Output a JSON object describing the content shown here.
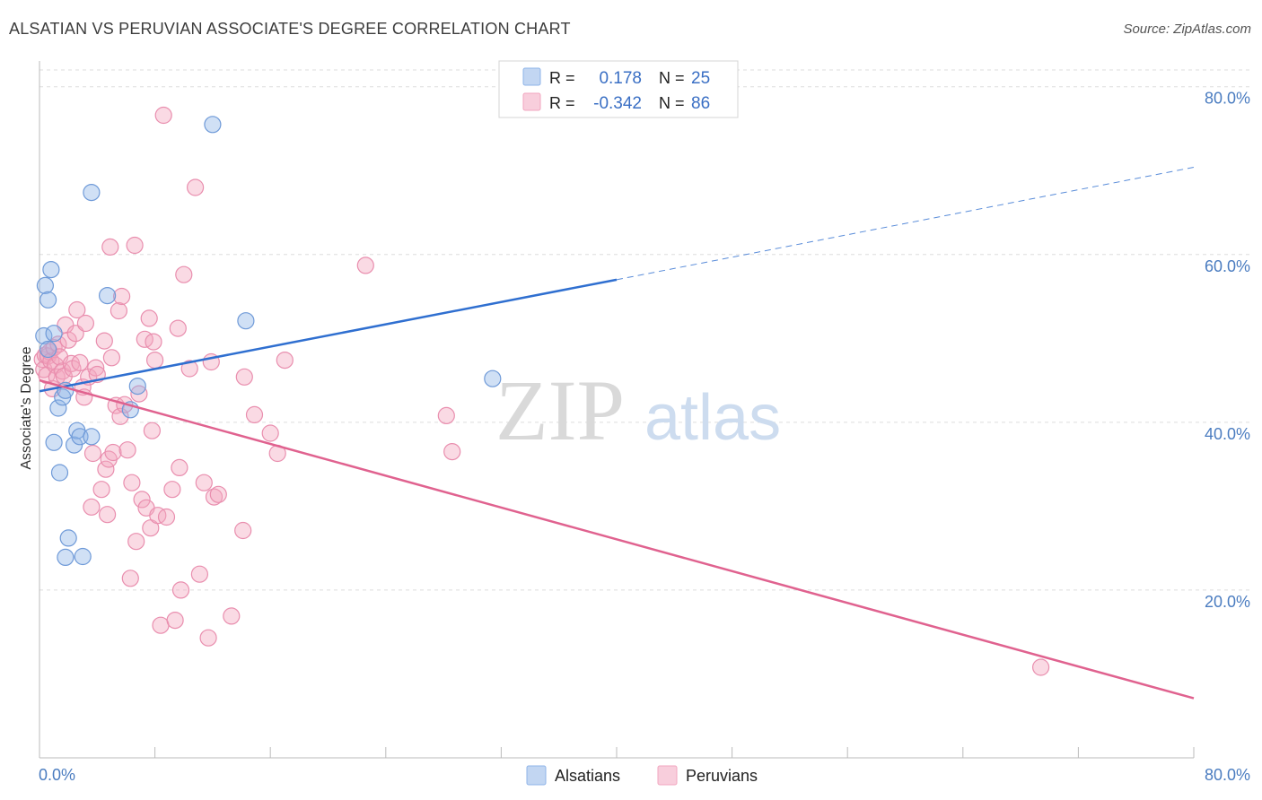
{
  "title": "ALSATIAN VS PERUVIAN ASSOCIATE'S DEGREE CORRELATION CHART",
  "source": "Source: ZipAtlas.com",
  "watermark": {
    "zip": "ZIP",
    "atlas": "atlas"
  },
  "colors": {
    "alsatians": "#8fb4e8",
    "alsatians_line": "#2f6fd0",
    "peruvians": "#f2a6bf",
    "peruvians_line": "#e0628f",
    "tick": "#4a7cc0",
    "grid": "#dddddd"
  },
  "legend_top": [
    {
      "r_label": "R =",
      "r_value": "0.178",
      "n_label": "N =",
      "n_value": "25"
    },
    {
      "r_label": "R =",
      "r_value": "-0.342",
      "n_label": "N =",
      "n_value": "86"
    }
  ],
  "chart_data": {
    "type": "scatter",
    "title": "ALSATIAN VS PERUVIAN ASSOCIATE'S DEGREE CORRELATION CHART",
    "xlabel": "",
    "ylabel": "Associate's Degree",
    "xlim": [
      0,
      80
    ],
    "ylim": [
      0,
      82
    ],
    "x_tick_labels": [
      "0.0%",
      "80.0%"
    ],
    "y_ticks": [
      20,
      40,
      60,
      80
    ],
    "y_tick_labels": [
      "20.0%",
      "40.0%",
      "60.0%",
      "80.0%"
    ],
    "grid": true,
    "legend_position": "bottom-center",
    "series": [
      {
        "name": "Alsatians",
        "r": 0.178,
        "n": 25,
        "points": [
          [
            0.3,
            50.3
          ],
          [
            0.6,
            48.7
          ],
          [
            0.4,
            56.3
          ],
          [
            0.6,
            54.6
          ],
          [
            0.8,
            58.2
          ],
          [
            1.0,
            50.6
          ],
          [
            1.0,
            37.6
          ],
          [
            1.3,
            41.7
          ],
          [
            1.4,
            34.0
          ],
          [
            1.6,
            43.0
          ],
          [
            1.8,
            43.8
          ],
          [
            1.8,
            23.9
          ],
          [
            2.0,
            26.2
          ],
          [
            2.4,
            37.3
          ],
          [
            2.6,
            39.0
          ],
          [
            2.8,
            38.3
          ],
          [
            3.0,
            24.0
          ],
          [
            3.6,
            38.3
          ],
          [
            3.6,
            67.4
          ],
          [
            4.7,
            55.1
          ],
          [
            6.3,
            41.5
          ],
          [
            6.8,
            44.3
          ],
          [
            12.0,
            75.5
          ],
          [
            14.3,
            52.1
          ],
          [
            31.4,
            45.2
          ]
        ],
        "trend": {
          "x": [
            0,
            40
          ],
          "y": [
            43.7,
            57.0
          ]
        },
        "trend_extension": {
          "x": [
            40,
            80
          ],
          "y": [
            57.0,
            70.4
          ]
        }
      },
      {
        "name": "Peruvians",
        "r": -0.342,
        "n": 86,
        "points": [
          [
            0.2,
            47.5
          ],
          [
            0.3,
            46.3
          ],
          [
            0.4,
            48.0
          ],
          [
            0.5,
            45.6
          ],
          [
            0.6,
            47.9
          ],
          [
            0.7,
            48.4
          ],
          [
            0.8,
            47.3
          ],
          [
            0.9,
            44.0
          ],
          [
            1.0,
            48.9
          ],
          [
            1.1,
            46.8
          ],
          [
            1.2,
            45.4
          ],
          [
            1.3,
            49.3
          ],
          [
            1.4,
            47.8
          ],
          [
            1.6,
            46.1
          ],
          [
            1.7,
            45.5
          ],
          [
            1.8,
            51.6
          ],
          [
            2.0,
            49.8
          ],
          [
            2.2,
            47.0
          ],
          [
            2.3,
            46.4
          ],
          [
            2.5,
            50.6
          ],
          [
            2.6,
            53.4
          ],
          [
            2.8,
            47.1
          ],
          [
            3.0,
            44.2
          ],
          [
            3.1,
            43.0
          ],
          [
            3.2,
            51.8
          ],
          [
            3.4,
            45.4
          ],
          [
            3.6,
            29.9
          ],
          [
            3.7,
            36.3
          ],
          [
            3.9,
            46.5
          ],
          [
            4.0,
            45.7
          ],
          [
            4.3,
            32.0
          ],
          [
            4.5,
            49.7
          ],
          [
            4.6,
            34.4
          ],
          [
            4.7,
            29.0
          ],
          [
            4.8,
            35.6
          ],
          [
            4.9,
            60.9
          ],
          [
            5.0,
            47.7
          ],
          [
            5.1,
            36.4
          ],
          [
            5.3,
            42.0
          ],
          [
            5.5,
            53.3
          ],
          [
            5.6,
            40.7
          ],
          [
            5.7,
            55.0
          ],
          [
            5.9,
            42.1
          ],
          [
            6.1,
            36.7
          ],
          [
            6.3,
            21.4
          ],
          [
            6.4,
            32.8
          ],
          [
            6.6,
            61.1
          ],
          [
            6.7,
            25.8
          ],
          [
            6.9,
            43.4
          ],
          [
            7.1,
            30.8
          ],
          [
            7.3,
            49.9
          ],
          [
            7.4,
            29.8
          ],
          [
            7.6,
            52.4
          ],
          [
            7.7,
            27.4
          ],
          [
            7.8,
            39.0
          ],
          [
            7.9,
            49.6
          ],
          [
            8.0,
            47.4
          ],
          [
            8.2,
            28.9
          ],
          [
            8.4,
            15.8
          ],
          [
            8.6,
            76.6
          ],
          [
            8.8,
            28.7
          ],
          [
            9.2,
            32.0
          ],
          [
            9.4,
            16.4
          ],
          [
            9.6,
            51.2
          ],
          [
            9.7,
            34.6
          ],
          [
            9.8,
            20.0
          ],
          [
            10.0,
            57.6
          ],
          [
            10.4,
            46.4
          ],
          [
            10.8,
            68.0
          ],
          [
            11.1,
            21.9
          ],
          [
            11.4,
            32.8
          ],
          [
            11.7,
            14.3
          ],
          [
            11.9,
            47.2
          ],
          [
            12.1,
            31.1
          ],
          [
            12.4,
            31.4
          ],
          [
            13.3,
            16.9
          ],
          [
            14.1,
            27.1
          ],
          [
            14.2,
            45.4
          ],
          [
            14.9,
            40.9
          ],
          [
            16.0,
            38.7
          ],
          [
            16.5,
            36.3
          ],
          [
            17.0,
            47.4
          ],
          [
            22.6,
            58.7
          ],
          [
            28.2,
            40.8
          ],
          [
            28.6,
            36.5
          ],
          [
            69.4,
            10.8
          ]
        ],
        "trend": {
          "x": [
            0,
            80
          ],
          "y": [
            45.0,
            7.1
          ]
        }
      }
    ]
  }
}
